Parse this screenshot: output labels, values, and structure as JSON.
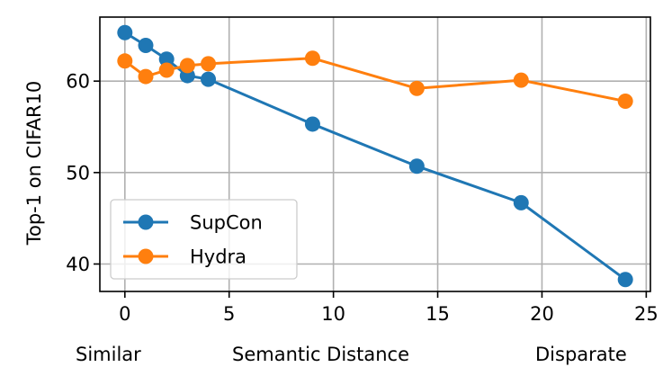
{
  "chart_data": {
    "type": "line",
    "title": "",
    "ylabel": "Top-1 on CIFAR10",
    "xlabel": "Semantic Distance",
    "xlabel_left": "Similar",
    "xlabel_right": "Disparate",
    "xlim": [
      -1.2,
      25.2
    ],
    "ylim": [
      37,
      67
    ],
    "xticks": [
      0,
      5,
      10,
      15,
      20,
      25
    ],
    "yticks": [
      40,
      50,
      60
    ],
    "grid": true,
    "legend_position": "lower-left",
    "x": [
      0,
      1,
      2,
      3,
      4,
      9,
      14,
      19,
      24
    ],
    "series": [
      {
        "name": "SupCon",
        "color": "#1f77b4",
        "values": [
          65.3,
          63.9,
          62.4,
          60.6,
          60.2,
          55.3,
          50.7,
          46.7,
          38.3
        ]
      },
      {
        "name": "Hydra",
        "color": "#ff7f0e",
        "values": [
          62.2,
          60.5,
          61.2,
          61.7,
          61.9,
          62.5,
          59.2,
          60.1,
          57.8
        ]
      }
    ]
  }
}
